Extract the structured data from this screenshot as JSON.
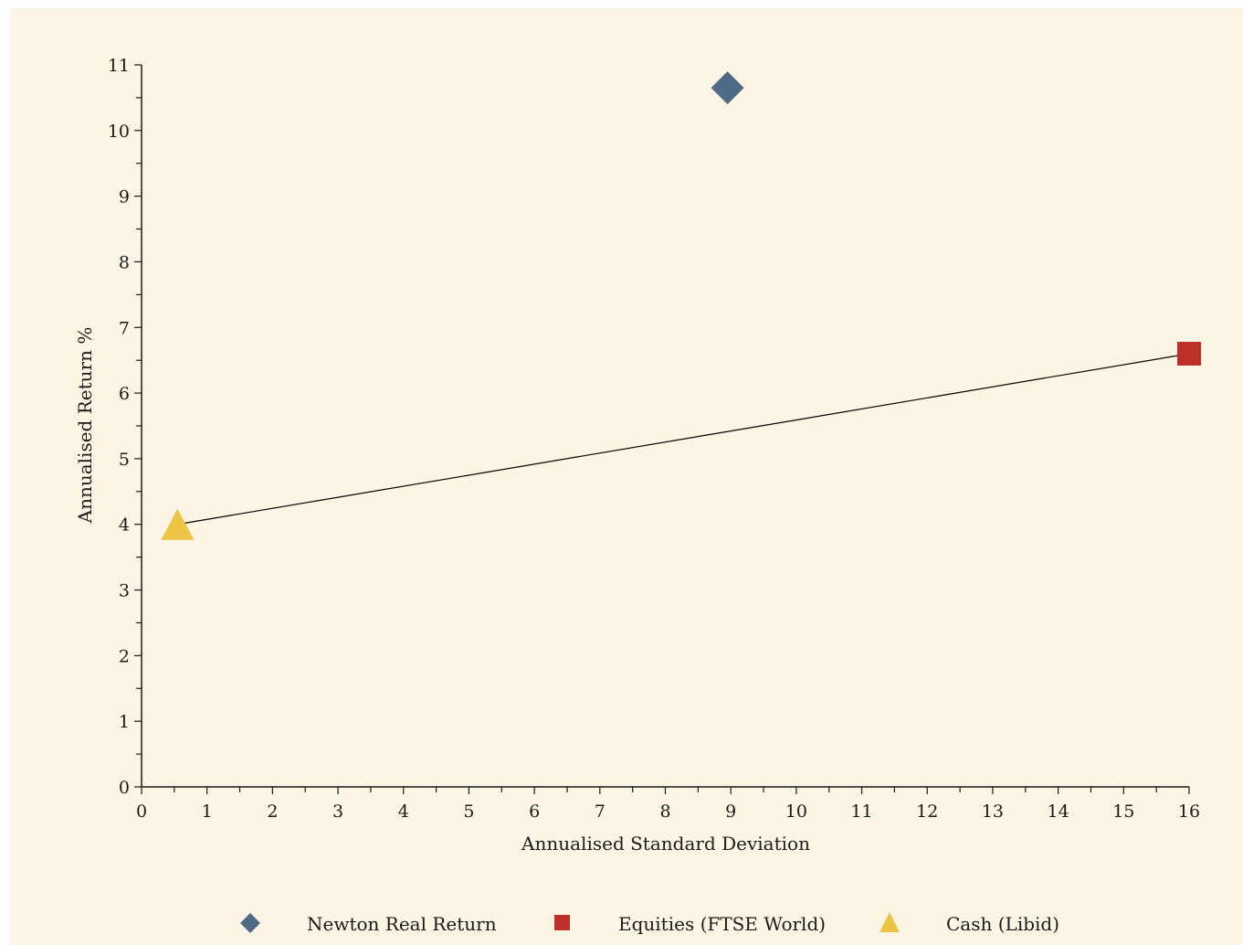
{
  "colors": {
    "background": "#fcf5e3",
    "newton": "#4e6a85",
    "equities": "#be2f28",
    "cash": "#ecc544",
    "axis": "#1a1a1a"
  },
  "chart_data": {
    "type": "scatter",
    "xlabel": "Annualised Standard Deviation",
    "ylabel": "Annualised Return %",
    "xlim": [
      0,
      16
    ],
    "ylim": [
      0,
      11
    ],
    "x_ticks": [
      0,
      1,
      2,
      3,
      4,
      5,
      6,
      7,
      8,
      9,
      10,
      11,
      12,
      13,
      14,
      15,
      16
    ],
    "y_ticks": [
      0,
      1,
      2,
      3,
      4,
      5,
      6,
      7,
      8,
      9,
      10,
      11
    ],
    "grid": false,
    "legend_position": "bottom",
    "series": [
      {
        "name": "Newton Real Return",
        "marker": "diamond",
        "color": "#4e6a85",
        "points": [
          {
            "x": 8.95,
            "y": 10.65
          }
        ]
      },
      {
        "name": "Equities (FTSE World)",
        "marker": "square",
        "color": "#be2f28",
        "points": [
          {
            "x": 16.0,
            "y": 6.6
          }
        ]
      },
      {
        "name": "Cash (Libid)",
        "marker": "triangle",
        "color": "#ecc544",
        "points": [
          {
            "x": 0.55,
            "y": 4.0
          }
        ]
      }
    ],
    "line": {
      "from": {
        "x": 0.55,
        "y": 4.0
      },
      "to": {
        "x": 16.0,
        "y": 6.6
      }
    }
  }
}
